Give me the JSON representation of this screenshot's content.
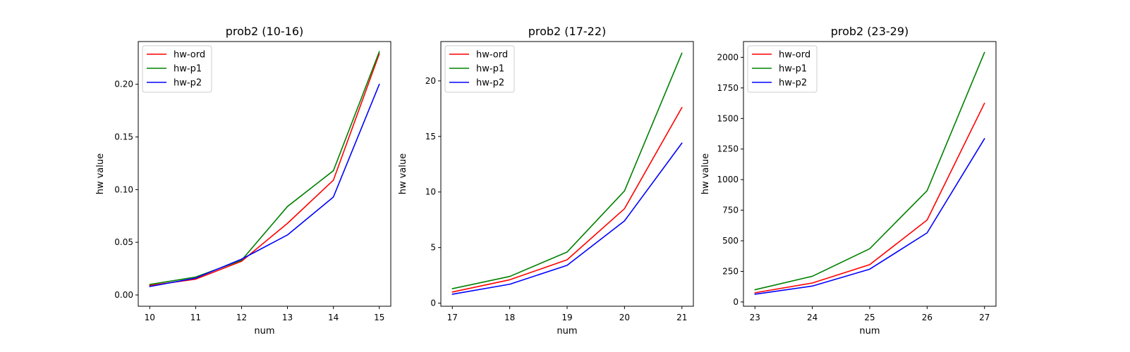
{
  "chart_data": [
    {
      "type": "line",
      "title": "prob2 (10-16)",
      "xlabel": "num",
      "ylabel": "hw value",
      "x": [
        10,
        11,
        12,
        13,
        14,
        15
      ],
      "xticks": [
        "10",
        "11",
        "12",
        "13",
        "14",
        "15"
      ],
      "yticks": [
        "0.00",
        "0.05",
        "0.10",
        "0.15",
        "0.20"
      ],
      "ytick_values": [
        0,
        0.05,
        0.1,
        0.15,
        0.2
      ],
      "xlim": [
        9.75,
        15.25
      ],
      "ylim": [
        -0.0107,
        0.2406
      ],
      "grid": false,
      "legend": "upper left",
      "series": [
        {
          "name": "hw-ord",
          "color": "#ff0000",
          "values": [
            0.009,
            0.015,
            0.032,
            0.068,
            0.109,
            0.229
          ]
        },
        {
          "name": "hw-p1",
          "color": "#008000",
          "values": [
            0.01,
            0.017,
            0.033,
            0.084,
            0.118,
            0.231
          ]
        },
        {
          "name": "hw-p2",
          "color": "#0000ff",
          "values": [
            0.008,
            0.016,
            0.034,
            0.057,
            0.093,
            0.2
          ]
        }
      ]
    },
    {
      "type": "line",
      "title": "prob2 (17-22)",
      "xlabel": "num",
      "ylabel": "hw value",
      "x": [
        17,
        18,
        19,
        20,
        21
      ],
      "xticks": [
        "17",
        "18",
        "19",
        "20",
        "21"
      ],
      "yticks": [
        "0",
        "5",
        "10",
        "15",
        "20"
      ],
      "ytick_values": [
        0,
        5,
        10,
        15,
        20
      ],
      "xlim": [
        16.8,
        21.2
      ],
      "ylim": [
        -0.28,
        23.54
      ],
      "grid": false,
      "legend": "upper left",
      "series": [
        {
          "name": "hw-ord",
          "color": "#ff0000",
          "values": [
            1.0,
            2.1,
            3.9,
            8.5,
            17.6
          ]
        },
        {
          "name": "hw-p1",
          "color": "#008000",
          "values": [
            1.3,
            2.4,
            4.6,
            10.1,
            22.5
          ]
        },
        {
          "name": "hw-p2",
          "color": "#0000ff",
          "values": [
            0.8,
            1.7,
            3.4,
            7.4,
            14.4
          ]
        }
      ]
    },
    {
      "type": "line",
      "title": "prob2 (23-29)",
      "xlabel": "num",
      "ylabel": "hw value",
      "x": [
        23,
        24,
        25,
        26,
        27
      ],
      "xticks": [
        "23",
        "24",
        "25",
        "26",
        "27"
      ],
      "yticks": [
        "0",
        "250",
        "500",
        "750",
        "1000",
        "1250",
        "1500",
        "1750",
        "2000"
      ],
      "ytick_values": [
        0,
        250,
        500,
        750,
        1000,
        1250,
        1500,
        1750,
        2000
      ],
      "xlim": [
        22.8,
        27.2
      ],
      "ylim": [
        -35,
        2129
      ],
      "grid": false,
      "legend": "upper left",
      "series": [
        {
          "name": "hw-ord",
          "color": "#ff0000",
          "values": [
            75,
            155,
            305,
            670,
            1625
          ]
        },
        {
          "name": "hw-p1",
          "color": "#008000",
          "values": [
            100,
            210,
            435,
            910,
            2040
          ]
        },
        {
          "name": "hw-p2",
          "color": "#0000ff",
          "values": [
            63,
            130,
            268,
            565,
            1335
          ]
        }
      ]
    }
  ]
}
